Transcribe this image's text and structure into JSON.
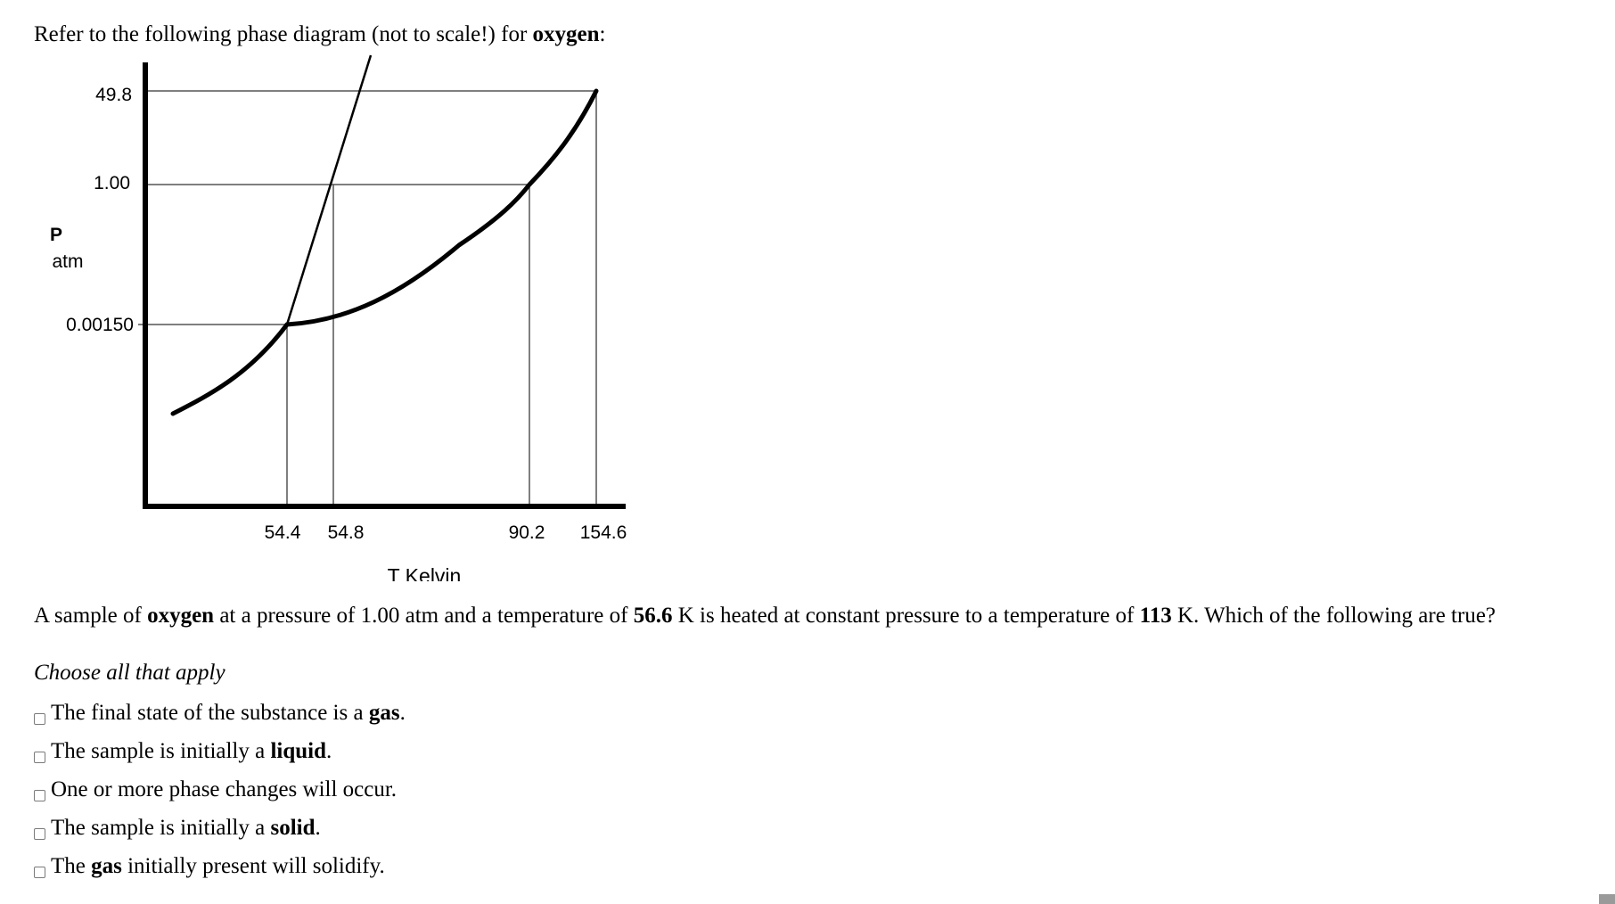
{
  "intro": {
    "prefix": "Refer to the following phase diagram (not to scale!) for ",
    "substance": "oxygen",
    "suffix": ":"
  },
  "diagram": {
    "y_axis_label": "P",
    "y_axis_unit": "atm",
    "x_axis_label": "T Kelvin",
    "y_ticks": [
      "49.8",
      "1.00",
      "0.00150"
    ],
    "x_ticks": [
      "54.4",
      "54.8",
      "90.2",
      "154.6"
    ],
    "triple_point": {
      "T": "54.4",
      "P": "0.00150"
    },
    "normal_melting_point": {
      "T": "54.8",
      "P": "1.00"
    },
    "normal_boiling_point": {
      "T": "90.2",
      "P": "1.00"
    },
    "critical_point": {
      "T": "154.6",
      "P": "49.8"
    }
  },
  "question": {
    "p1": "A sample of ",
    "b1": "oxygen",
    "p2": " at a pressure of 1.00 atm and a temperature of ",
    "b2": "56.6",
    "p3": " K is heated at constant pressure to a temperature of ",
    "b3": "113",
    "p4": " K. Which of the following are true?"
  },
  "hint": "Choose all that apply",
  "options": [
    {
      "a": "The final state of the substance is a ",
      "b": "gas",
      "c": "."
    },
    {
      "a": "The sample is initially a ",
      "b": "liquid",
      "c": "."
    },
    {
      "a": "One or more phase changes will occur.",
      "b": "",
      "c": ""
    },
    {
      "a": "The sample is initially a ",
      "b": "solid",
      "c": "."
    },
    {
      "a": "The ",
      "b": "gas",
      "c": " initially present will solidify."
    }
  ]
}
